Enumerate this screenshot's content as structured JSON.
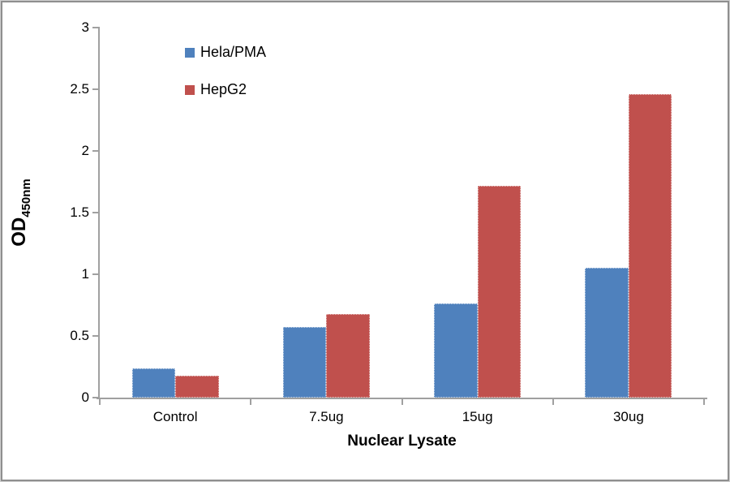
{
  "chart_data": {
    "type": "bar",
    "title": "",
    "categories": [
      "Control",
      "7.5ug",
      "15ug",
      "30ug"
    ],
    "series": [
      {
        "name": "Hela/PMA",
        "color": "#4f81bd",
        "values": [
          0.24,
          0.57,
          0.76,
          1.05
        ]
      },
      {
        "name": "HepG2",
        "color": "#c0504d",
        "values": [
          0.18,
          0.68,
          1.72,
          2.46
        ]
      }
    ],
    "xlabel": "Nuclear Lysate",
    "ylabel_main": "OD",
    "ylabel_sub": "450nm",
    "ylim": [
      0,
      3
    ],
    "yticks": [
      0,
      0.5,
      1,
      1.5,
      2,
      2.5,
      3
    ],
    "ytick_labels": [
      "0",
      "0.5",
      "1",
      "1.5",
      "2",
      "2.5",
      "3"
    ],
    "grid": false,
    "legend_position": "upper-left-inside",
    "axis_color": "#a0a0a0",
    "text_color": "#000000"
  }
}
